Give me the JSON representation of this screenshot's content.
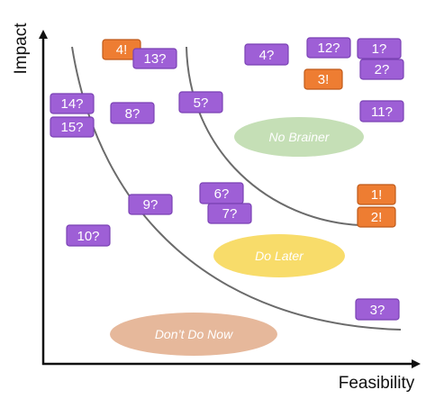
{
  "axes": {
    "x_title": "Feasibility",
    "y_title": "Impact"
  },
  "zones": [
    {
      "label": "No Brainer",
      "color": "#c5dfb6"
    },
    {
      "label": "Do Later",
      "color": "#f8dc6a"
    },
    {
      "label": "Don’t Do Now",
      "color": "#e6b89b"
    }
  ],
  "tags": [
    {
      "label": "4!",
      "status": "committed"
    },
    {
      "label": "13?",
      "status": "candidate"
    },
    {
      "label": "4?",
      "status": "candidate"
    },
    {
      "label": "12?",
      "status": "candidate"
    },
    {
      "label": "1?",
      "status": "candidate"
    },
    {
      "label": "3!",
      "status": "committed"
    },
    {
      "label": "2?",
      "status": "candidate"
    },
    {
      "label": "14?",
      "status": "candidate"
    },
    {
      "label": "15?",
      "status": "candidate"
    },
    {
      "label": "8?",
      "status": "candidate"
    },
    {
      "label": "5?",
      "status": "candidate"
    },
    {
      "label": "11?",
      "status": "candidate"
    },
    {
      "label": "6?",
      "status": "candidate"
    },
    {
      "label": "7?",
      "status": "candidate"
    },
    {
      "label": "9?",
      "status": "candidate"
    },
    {
      "label": "1!",
      "status": "committed"
    },
    {
      "label": "2!",
      "status": "committed"
    },
    {
      "label": "10?",
      "status": "candidate"
    },
    {
      "label": "3?",
      "status": "candidate"
    }
  ],
  "colors": {
    "candidate_fill": "#9e5fd6",
    "candidate_border": "#7a42b3",
    "committed_fill": "#ee7d32",
    "committed_border": "#bf5a1a",
    "axis": "#111111",
    "curve": "#6b6b6b"
  }
}
